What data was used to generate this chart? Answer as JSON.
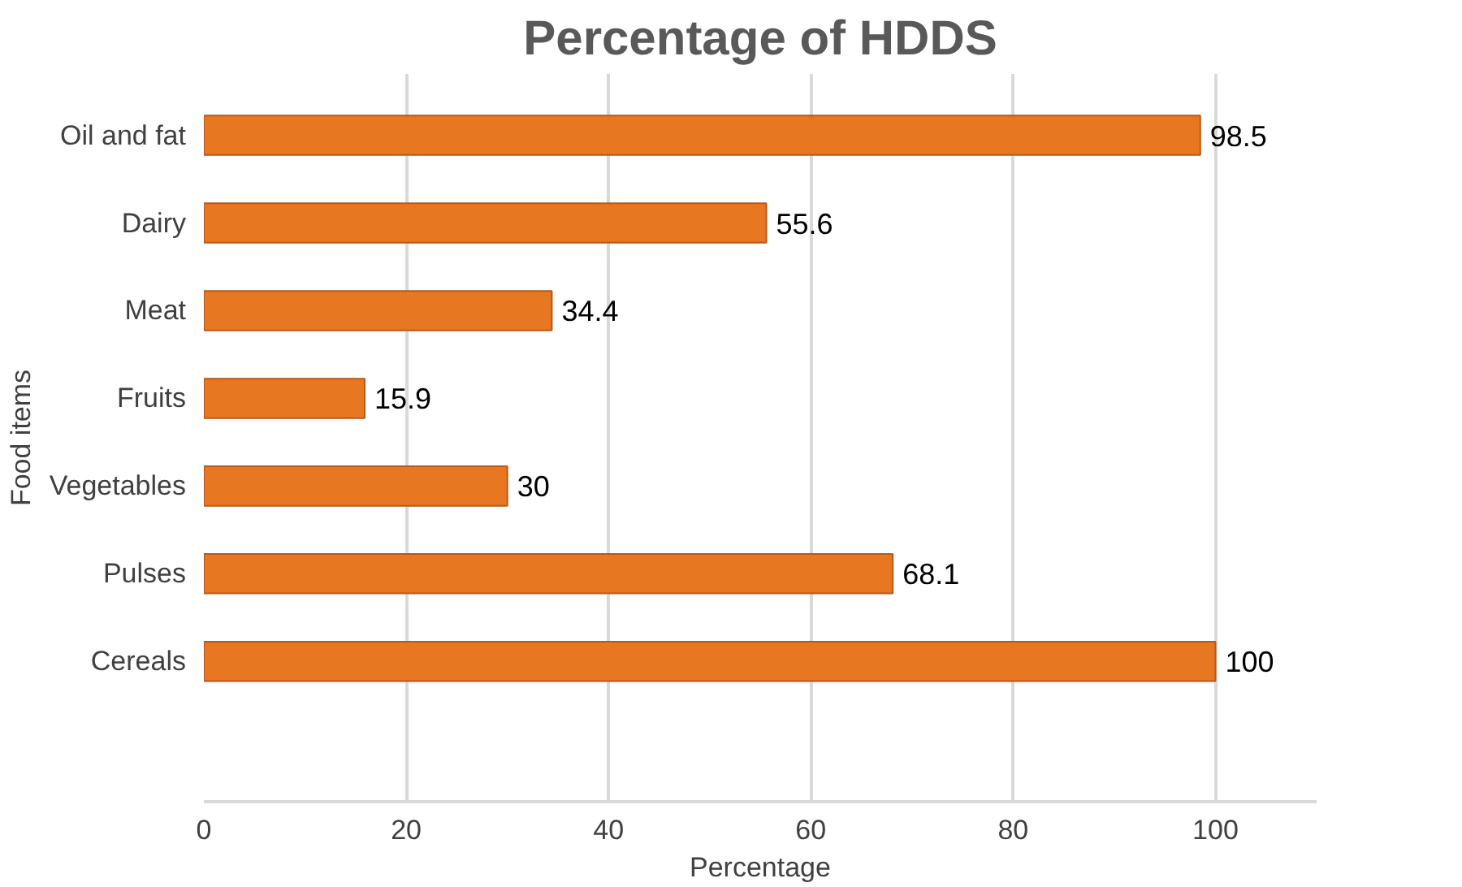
{
  "chart_data": {
    "type": "bar",
    "orientation": "horizontal",
    "title": "Percentage of HDDS",
    "xlabel": "Percentage",
    "ylabel": "Food items",
    "categories": [
      "Oil and fat",
      "Dairy",
      "Meat",
      "Fruits",
      "Vegetables",
      "Pulses",
      "Cereals"
    ],
    "values": [
      98.5,
      55.6,
      34.4,
      15.9,
      30,
      68.1,
      100
    ],
    "color": "#e87722",
    "xlim": [
      0,
      110
    ],
    "xticks": [
      0,
      20,
      40,
      60,
      80,
      100
    ],
    "grid": "x",
    "data_labels": true
  }
}
